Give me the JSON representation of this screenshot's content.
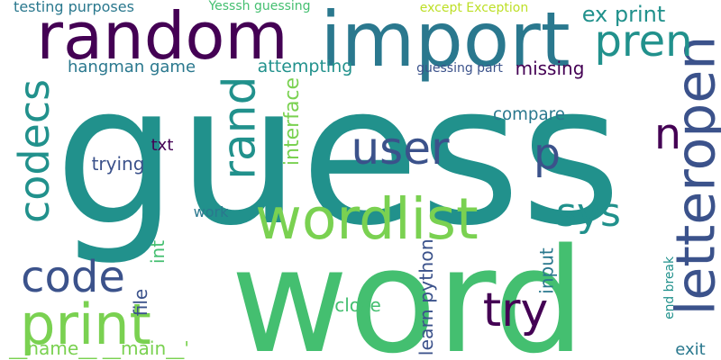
{
  "words": [
    {
      "text": "guess",
      "color": "#21918c"
    },
    {
      "text": "word",
      "color": "#44bf70"
    },
    {
      "text": "random",
      "color": "#440154"
    },
    {
      "text": "import",
      "color": "#2a788e"
    },
    {
      "text": "wordlist",
      "color": "#7ad151"
    },
    {
      "text": "letteropen",
      "color": "#3b528b"
    },
    {
      "text": "print",
      "color": "#7ad151"
    },
    {
      "text": "user",
      "color": "#3b528b"
    },
    {
      "text": "code",
      "color": "#3b528b"
    },
    {
      "text": "try",
      "color": "#440154"
    },
    {
      "text": "pren",
      "color": "#21918c"
    },
    {
      "text": "rand",
      "color": "#21918c"
    },
    {
      "text": "codecs",
      "color": "#21918c"
    },
    {
      "text": "sys",
      "color": "#21918c"
    },
    {
      "text": "p",
      "color": "#3b528b"
    },
    {
      "text": "n",
      "color": "#440154"
    },
    {
      "text": "ex print",
      "color": "#21918c"
    },
    {
      "text": "hangman game",
      "color": "#2a788e"
    },
    {
      "text": "attempting",
      "color": "#21918c"
    },
    {
      "text": "missing",
      "color": "#440154"
    },
    {
      "text": "guessing part",
      "color": "#3b528b"
    },
    {
      "text": "compare",
      "color": "#2a788e"
    },
    {
      "text": "interface",
      "color": "#7ad151"
    },
    {
      "text": "trying",
      "color": "#3b528b"
    },
    {
      "text": "txt",
      "color": "#440154"
    },
    {
      "text": "work",
      "color": "#2a788e"
    },
    {
      "text": "int",
      "color": "#44bf70"
    },
    {
      "text": "file",
      "color": "#3b528b"
    },
    {
      "text": "__name__ __main__'",
      "color": "#7ad151"
    },
    {
      "text": "close",
      "color": "#44bf70"
    },
    {
      "text": "learn python",
      "color": "#3b528b"
    },
    {
      "text": "input",
      "color": "#2a788e"
    },
    {
      "text": "end break",
      "color": "#21918c"
    },
    {
      "text": "exit",
      "color": "#2a788e"
    },
    {
      "text": "testing purposes",
      "color": "#2a788e"
    },
    {
      "text": "Yesssh guessing",
      "color": "#44bf70"
    },
    {
      "text": "except Exception",
      "color": "#bddf26"
    }
  ]
}
